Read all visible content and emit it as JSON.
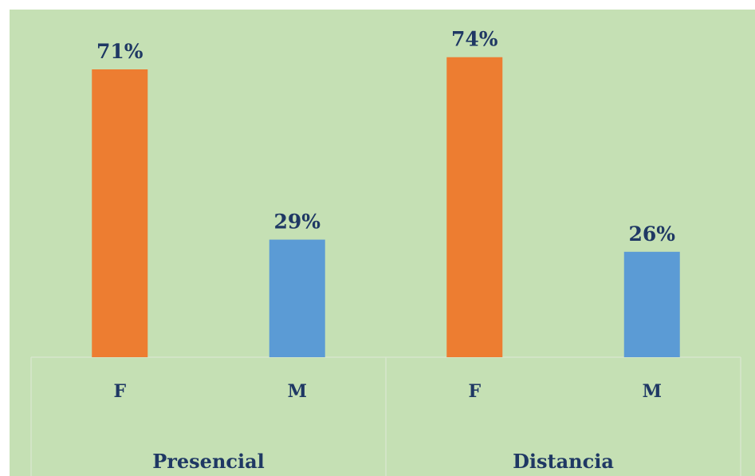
{
  "colors": {
    "page_background": "#ffffff",
    "plot_background": "#c5e0b4",
    "female_bar": "#ed7d31",
    "male_bar": "#5b9bd5",
    "label_text": "#1f3864",
    "grid_line": "#d6e6cc"
  },
  "chart_data": {
    "type": "bar",
    "title": "",
    "xlabel": "",
    "ylabel": "",
    "ylim": [
      0,
      80
    ],
    "grid": false,
    "legend": "none",
    "groups": [
      {
        "name": "Presencial",
        "categories": [
          "F",
          "M"
        ],
        "values": [
          71,
          29
        ],
        "labels": [
          "71%",
          "29%"
        ]
      },
      {
        "name": "Distancia",
        "categories": [
          "F",
          "M"
        ],
        "values": [
          74,
          26
        ],
        "labels": [
          "74%",
          "26%"
        ]
      }
    ]
  }
}
